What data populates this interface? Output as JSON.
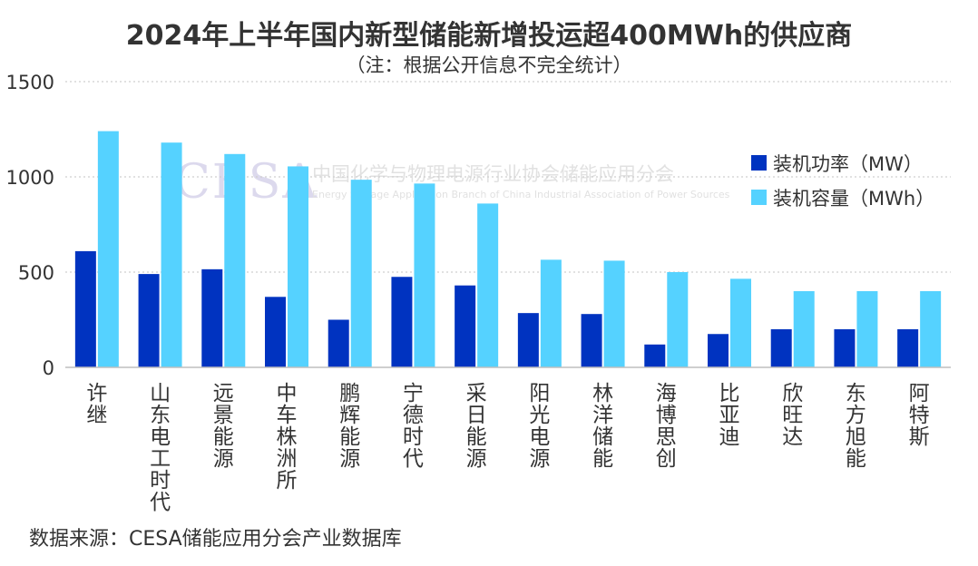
{
  "chart_data": {
    "type": "bar",
    "title": "2024年上半年国内新型储能新增投运超400MWh的供应商",
    "subtitle": "（注：根据公开信息不完全统计）",
    "categories": [
      "许继",
      "山东电工时代",
      "远景能源",
      "中车株洲所",
      "鹏辉能源",
      "宁德时代",
      "采日能源",
      "阳光电源",
      "林洋储能",
      "海博思创",
      "比亚迪",
      "欣旺达",
      "东方旭能",
      "阿特斯"
    ],
    "series": [
      {
        "name": "装机功率（MW）",
        "color": "#0033c0",
        "values": [
          610,
          490,
          515,
          370,
          250,
          475,
          430,
          285,
          280,
          120,
          175,
          200,
          200,
          200
        ]
      },
      {
        "name": "装机容量（MWh）",
        "color": "#55d2ff",
        "values": [
          1240,
          1180,
          1120,
          1055,
          985,
          965,
          860,
          565,
          560,
          500,
          465,
          400,
          400,
          400
        ]
      }
    ],
    "ylim": [
      0,
      1500
    ],
    "yticks": [
      0,
      500,
      1000,
      1500
    ],
    "grid": true,
    "legend": "right",
    "xlabel": "",
    "ylabel": ""
  },
  "watermark": {
    "logo": "CESA",
    "cn": "中国化学与物理电源行业协会储能应用分会",
    "en": "Energy Storage Application Branch of China Industrial Association of Power Sources"
  },
  "source_note": "数据来源：CESA储能应用分会产业数据库"
}
